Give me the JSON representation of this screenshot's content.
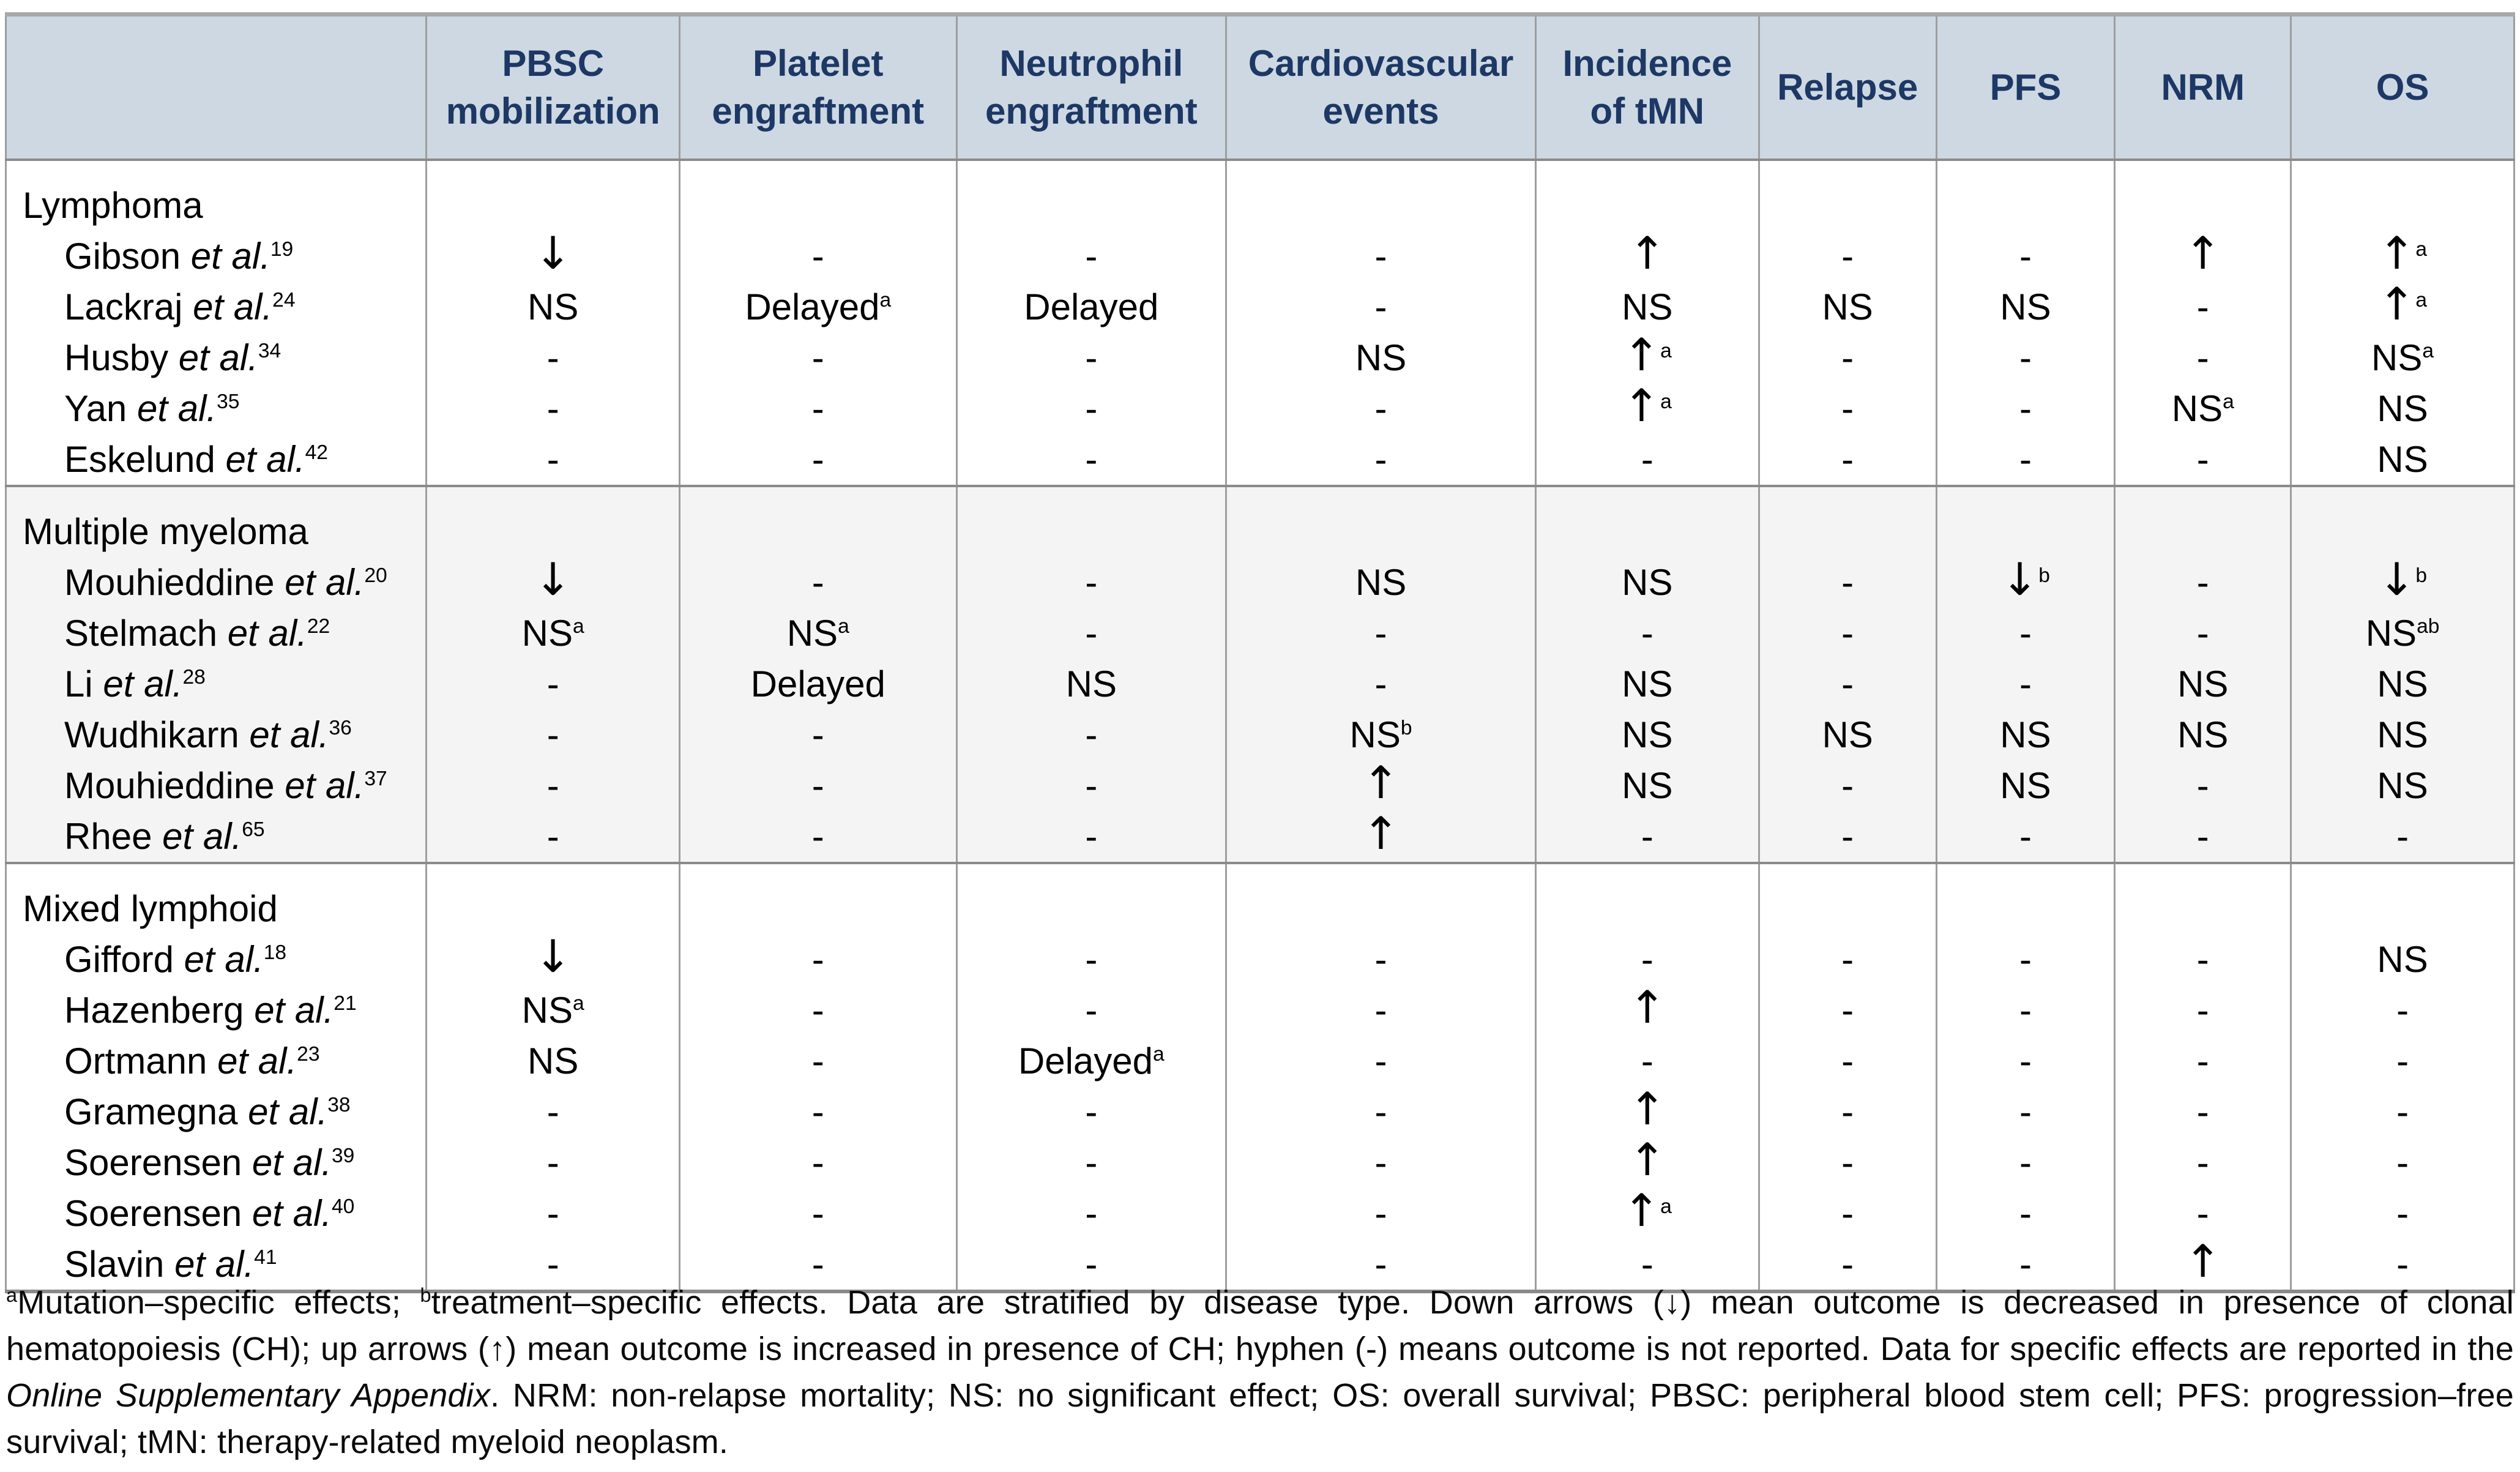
{
  "table": {
    "columns": [
      "",
      "PBSC mobilization",
      "Platelet engraftment",
      "Neutrophil engraftment",
      "Cardiovascular events",
      "Incidence of tMN",
      "Relapse",
      "PFS",
      "NRM",
      "OS"
    ],
    "sections": [
      {
        "label": "Lymphoma",
        "alt_background": false,
        "rows": [
          {
            "author": "Gibson",
            "etal": "et al.",
            "ref": "19",
            "cells": [
              "↓",
              "-",
              "-",
              "-",
              "↑",
              "-",
              "-",
              "↑",
              "↑^a"
            ]
          },
          {
            "author": "Lackraj",
            "etal": "et al.",
            "ref": "24",
            "cells": [
              "NS",
              "Delayed^a",
              "Delayed",
              "-",
              "NS",
              "NS",
              "NS",
              "-",
              "↑^a"
            ]
          },
          {
            "author": "Husby",
            "etal": "et al.",
            "ref": "34",
            "cells": [
              "-",
              "-",
              "-",
              "NS",
              "↑^a",
              "-",
              "-",
              "-",
              "NS^a"
            ]
          },
          {
            "author": "Yan",
            "etal": "et al.",
            "ref": "35",
            "cells": [
              "-",
              "-",
              "-",
              "-",
              "↑^a",
              "-",
              "-",
              "NS^a",
              "NS"
            ]
          },
          {
            "author": "Eskelund",
            "etal": "et al.",
            "ref": "42",
            "cells": [
              "-",
              "-",
              "-",
              "-",
              "-",
              "-",
              "-",
              "-",
              "NS"
            ]
          }
        ]
      },
      {
        "label": "Multiple myeloma",
        "alt_background": true,
        "rows": [
          {
            "author": "Mouhieddine",
            "etal": "et al.",
            "ref": "20",
            "cells": [
              "↓",
              "-",
              "-",
              "NS",
              "NS",
              "-",
              "↓^b",
              "-",
              "↓^b"
            ]
          },
          {
            "author": "Stelmach",
            "etal": "et al.",
            "ref": "22",
            "cells": [
              "NS^a",
              "NS^a",
              "-",
              "-",
              "-",
              "-",
              "-",
              "-",
              "NS^ab"
            ]
          },
          {
            "author": "Li",
            "etal": "et al.",
            "ref": "28",
            "cells": [
              "-",
              "Delayed",
              "NS",
              "-",
              "NS",
              "-",
              "-",
              "NS",
              "NS"
            ]
          },
          {
            "author": "Wudhikarn",
            "etal": "et al.",
            "ref": "36",
            "cells": [
              "-",
              "-",
              "-",
              "NS^b",
              "NS",
              "NS",
              "NS",
              "NS",
              "NS"
            ]
          },
          {
            "author": "Mouhieddine",
            "etal": "et al.",
            "ref": "37",
            "cells": [
              "-",
              "-",
              "-",
              "↑",
              "NS",
              "-",
              "NS",
              "-",
              "NS"
            ]
          },
          {
            "author": "Rhee",
            "etal": "et al.",
            "ref": "65",
            "cells": [
              "-",
              "-",
              "-",
              "↑",
              "-",
              "-",
              "-",
              "-",
              "-"
            ]
          }
        ]
      },
      {
        "label": "Mixed lymphoid",
        "alt_background": false,
        "rows": [
          {
            "author": "Gifford",
            "etal": "et al.",
            "ref": "18",
            "cells": [
              "↓",
              "-",
              "-",
              "-",
              "-",
              "-",
              "-",
              "-",
              "NS"
            ]
          },
          {
            "author": "Hazenberg",
            "etal": "et al.",
            "ref": "21",
            "cells": [
              "NS^a",
              "-",
              "-",
              "-",
              "↑",
              "-",
              "-",
              "-",
              "-"
            ]
          },
          {
            "author": "Ortmann",
            "etal": "et al.",
            "ref": "23",
            "cells": [
              "NS",
              "-",
              "Delayed^a",
              "-",
              "-",
              "-",
              "-",
              "-",
              "-"
            ]
          },
          {
            "author": "Gramegna",
            "etal": "et al.",
            "ref": "38",
            "cells": [
              "-",
              "-",
              "-",
              "-",
              "↑",
              "-",
              "-",
              "-",
              "-"
            ]
          },
          {
            "author": "Soerensen",
            "etal": "et al.",
            "ref": "39",
            "cells": [
              "-",
              "-",
              "-",
              "-",
              "↑",
              "-",
              "-",
              "-",
              "-"
            ]
          },
          {
            "author": "Soerensen",
            "etal": "et al.",
            "ref": "40",
            "cells": [
              "-",
              "-",
              "-",
              "-",
              "↑^a",
              "-",
              "-",
              "-",
              "-"
            ]
          },
          {
            "author": "Slavin",
            "etal": "et al.",
            "ref": "41",
            "cells": [
              "-",
              "-",
              "-",
              "-",
              "-",
              "-",
              "-",
              "↑",
              "-"
            ]
          }
        ]
      }
    ]
  },
  "footnote": {
    "segments": [
      {
        "sup": "a"
      },
      {
        "text": "Mutation–specific effects; "
      },
      {
        "sup": "b"
      },
      {
        "text": "treatment–specific effects. Data are stratified by disease type. Down arrows (↓) mean outcome is decreased in presence of clonal hematopoiesis (CH); up arrows (↑) mean outcome is increased in presence of CH; hyphen (-) means outcome is not reported. Data for specific effects are reported in the "
      },
      {
        "italic": "Online Supplementary Appendix"
      },
      {
        "text": ". NRM: non-relapse mortality; NS: no significant effect; OS: overall survival; PBSC: peripheral blood stem cell; PFS: progression–free survival; tMN: therapy-related myeloid neoplasm."
      }
    ]
  },
  "colors": {
    "header_bg": "#cdd8e2",
    "header_text": "#1d3865",
    "section_alt_bg": "#f4f4f4",
    "border": "#8f8f8f"
  },
  "column_widths_pct": [
    16.77,
    10.09,
    11.04,
    10.75,
    12.34,
    8.9,
    7.07,
    7.12,
    7.02,
    8.9
  ]
}
